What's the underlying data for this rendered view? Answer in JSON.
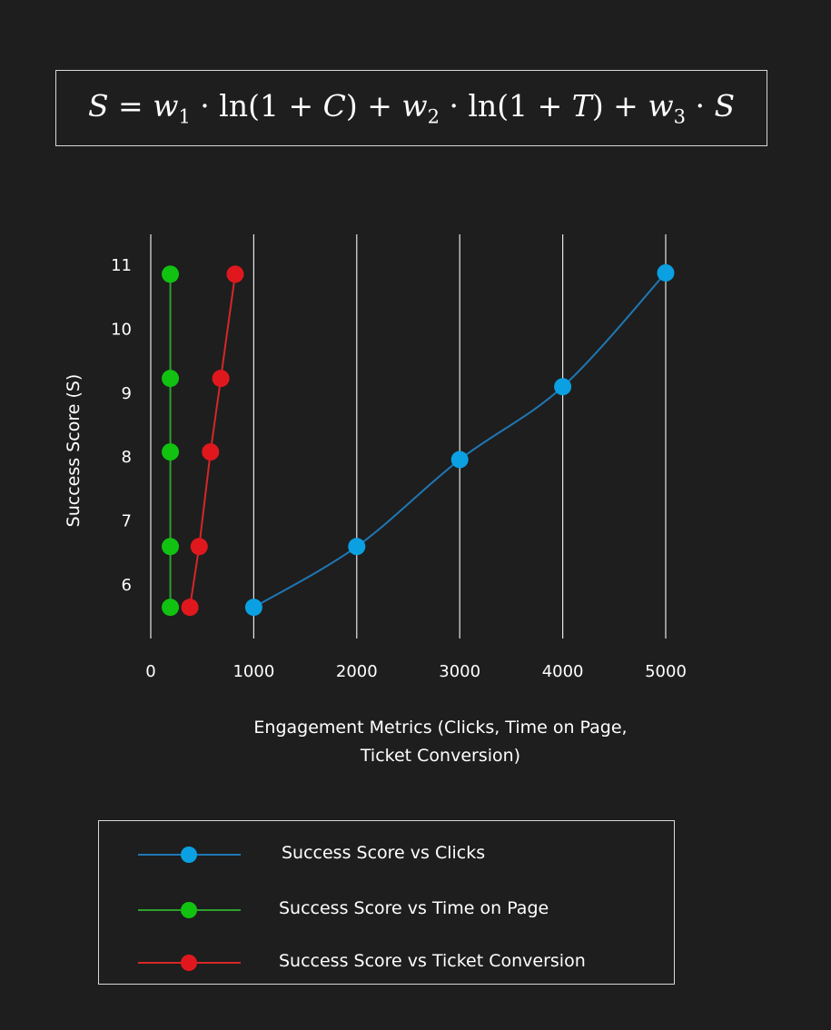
{
  "formula": {
    "lhs": "S",
    "w1": "w",
    "w1_sub": "1",
    "ln": "ln",
    "C": "C",
    "w2": "w",
    "w2_sub": "2",
    "T": "T",
    "w3": "w",
    "w3_sub": "3",
    "S": "S"
  },
  "chart_data": {
    "type": "line",
    "xlabel": "Engagement Metrics (Clicks, Time on Page, Ticket Conversion)",
    "ylabel": "Success Score (S)",
    "xlim": [
      0,
      5000
    ],
    "ylim": [
      5.4,
      11.3
    ],
    "x_ticks": [
      0,
      1000,
      2000,
      3000,
      4000,
      5000
    ],
    "y_ticks": [
      6,
      7,
      8,
      9,
      10,
      11
    ],
    "grid": "vertical",
    "legend_placement": "bottom",
    "series": [
      {
        "name": "Success Score vs Clicks",
        "color": "#1f77b4",
        "marker_color": "#0aa0e2",
        "smooth": true,
        "x": [
          1000,
          2000,
          3000,
          4000,
          5000
        ],
        "y": [
          5.65,
          6.6,
          7.96,
          9.1,
          10.88
        ]
      },
      {
        "name": "Success Score vs Time on Page",
        "color": "#2ca02c",
        "marker_color": "#11c211",
        "smooth": false,
        "x": [
          190,
          190,
          190,
          190,
          190
        ],
        "y": [
          5.65,
          6.6,
          8.08,
          9.23,
          10.86
        ]
      },
      {
        "name": "Success Score vs Ticket Conversion",
        "color": "#d62728",
        "marker_color": "#e0181e",
        "smooth": false,
        "x": [
          380,
          470,
          580,
          680,
          820
        ],
        "y": [
          5.65,
          6.6,
          8.08,
          9.23,
          10.86
        ]
      }
    ]
  }
}
